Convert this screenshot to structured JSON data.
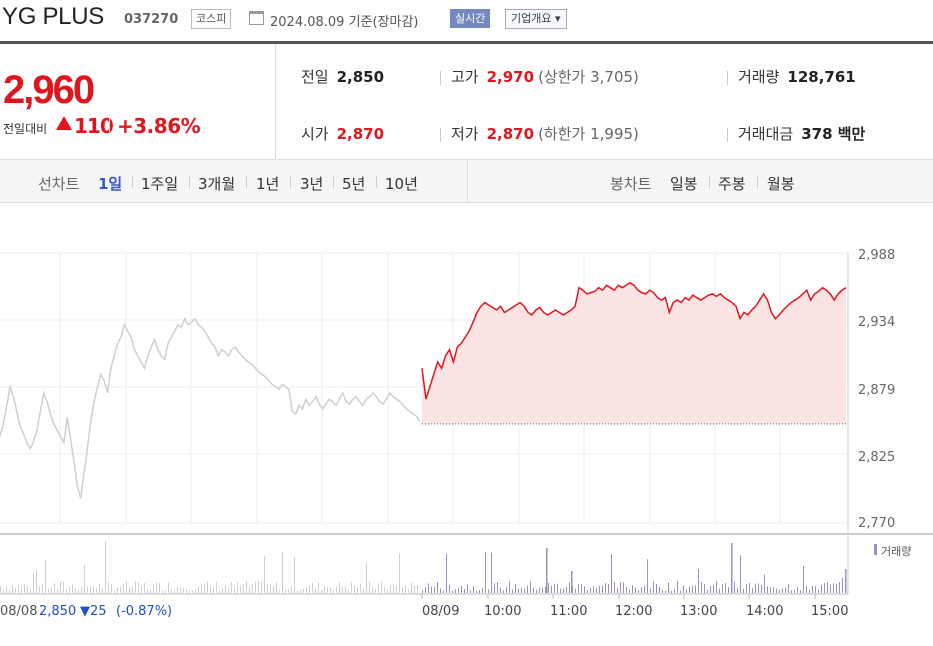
{
  "header": {
    "name": "YG PLUS",
    "code": "037270",
    "market": "코스피",
    "date": "2024.08.09  기준(장마감)",
    "live_label": "실시간",
    "corp_label": "기업개요 ▾"
  },
  "price": {
    "now": "2,960",
    "change_label": "전일대비",
    "change": "110",
    "rate": "+3.86%"
  },
  "stats": {
    "prev_label": "전일",
    "prev_value": "2,850",
    "high_label": "고가",
    "high_value": "2,970",
    "high_sub": "(상한가 3,705)",
    "volume_label": "거래량",
    "volume_value": "128,761",
    "open_label": "시가",
    "open_value": "2,870",
    "low_label": "저가",
    "low_value": "2,870",
    "low_sub": "(하한가 1,995)",
    "amount_label": "거래대금",
    "amount_value": "378 백만"
  },
  "tabs": {
    "line_label": "선차트",
    "line_items": [
      "1일",
      "1주일",
      "3개월",
      "1년",
      "3년",
      "5년",
      "10년"
    ],
    "active_index": 0,
    "candle_label": "봉차트",
    "candle_items": [
      "일봉",
      "주봉",
      "월봉"
    ]
  },
  "colors": {
    "up": "#e0161f",
    "down": "#1f4fc2",
    "prev_day_line": "#cfcfcf",
    "fill": "#fde4e4",
    "volume": "#9b8ec7"
  },
  "chart_data": {
    "type": "line",
    "yticks": [
      "2,988",
      "2,934",
      "2,879",
      "2,825",
      "2,770"
    ],
    "ylim": [
      2770,
      2988
    ],
    "xticks": [
      "08/09",
      "10:00",
      "11:00",
      "12:00",
      "13:00",
      "14:00",
      "15:00"
    ],
    "prev_close": 2850,
    "volume_legend": "거래량",
    "prev_day_label": "08/08",
    "prev_day_close": "2,850",
    "prev_day_change": "▼25",
    "prev_day_rate": "(-0.87%)",
    "series": [
      {
        "role": "prev_day",
        "values": [
          2840,
          2850,
          2865,
          2880,
          2872,
          2860,
          2848,
          2842,
          2835,
          2830,
          2836,
          2845,
          2860,
          2875,
          2868,
          2858,
          2850,
          2845,
          2840,
          2835,
          2855,
          2838,
          2820,
          2800,
          2790,
          2810,
          2830,
          2852,
          2868,
          2880,
          2890,
          2885,
          2875,
          2895,
          2905,
          2915,
          2920,
          2930,
          2925,
          2920,
          2910,
          2905,
          2900,
          2895,
          2905,
          2912,
          2918,
          2910,
          2905,
          2902,
          2915,
          2920,
          2925,
          2930,
          2928,
          2935,
          2930,
          2932,
          2935,
          2930,
          2928,
          2925,
          2920,
          2915,
          2912,
          2905,
          2910,
          2908,
          2905,
          2910,
          2912,
          2908,
          2905,
          2902,
          2900,
          2898,
          2895,
          2892,
          2890,
          2888,
          2885,
          2882,
          2880,
          2878,
          2882,
          2880,
          2878,
          2860,
          2858,
          2865,
          2862,
          2870,
          2865,
          2868,
          2872,
          2866,
          2862,
          2866,
          2870,
          2868,
          2865,
          2870,
          2875,
          2868,
          2866,
          2870,
          2872,
          2868,
          2865,
          2870,
          2872,
          2875,
          2872,
          2868,
          2866,
          2870,
          2875,
          2872,
          2870,
          2868,
          2865,
          2862,
          2860,
          2858,
          2856,
          2852
        ]
      },
      {
        "role": "today",
        "values": [
          2895,
          2870,
          2880,
          2890,
          2900,
          2895,
          2905,
          2910,
          2900,
          2912,
          2915,
          2920,
          2925,
          2932,
          2940,
          2945,
          2948,
          2946,
          2944,
          2942,
          2945,
          2940,
          2942,
          2944,
          2946,
          2948,
          2945,
          2940,
          2938,
          2942,
          2944,
          2940,
          2938,
          2940,
          2942,
          2940,
          2938,
          2940,
          2942,
          2945,
          2960,
          2958,
          2955,
          2956,
          2957,
          2960,
          2958,
          2962,
          2960,
          2958,
          2962,
          2960,
          2962,
          2964,
          2962,
          2958,
          2956,
          2955,
          2958,
          2956,
          2952,
          2950,
          2952,
          2940,
          2948,
          2950,
          2948,
          2952,
          2950,
          2954,
          2952,
          2950,
          2952,
          2954,
          2955,
          2953,
          2955,
          2952,
          2950,
          2948,
          2945,
          2935,
          2940,
          2938,
          2942,
          2945,
          2950,
          2955,
          2950,
          2940,
          2935,
          2938,
          2942,
          2945,
          2948,
          2950,
          2952,
          2955,
          2958,
          2950,
          2955,
          2957,
          2960,
          2958,
          2955,
          2950,
          2955,
          2958,
          2960
        ]
      }
    ]
  }
}
